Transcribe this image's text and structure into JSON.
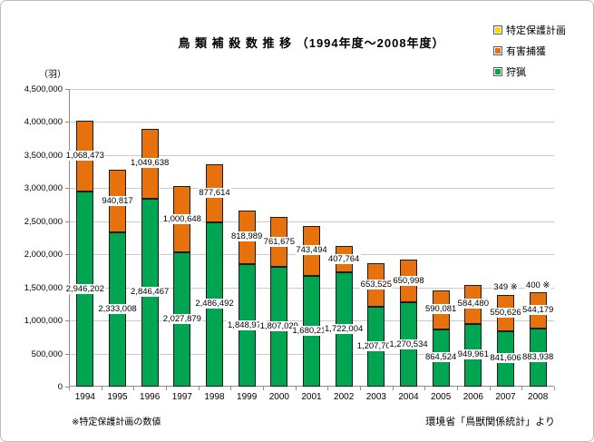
{
  "notes": {
    "left": "※特定保護計画の数値",
    "right": "環境省「鳥獣関係統計」より"
  },
  "chart_data": {
    "type": "bar",
    "stacked": true,
    "title": "鳥 類 補 殺 数 推 移 （1994年度～2008年度）",
    "unit_label": "（羽）",
    "categories": [
      "1994",
      "1995",
      "1996",
      "1997",
      "1998",
      "1999",
      "2000",
      "2001",
      "2002",
      "2003",
      "2004",
      "2005",
      "2006",
      "2007",
      "2008"
    ],
    "series": [
      {
        "name": "狩猟",
        "color": "#00a551",
        "values": [
          2946202,
          2333008,
          2846467,
          2027879,
          2486492,
          1848977,
          1807029,
          1680217,
          1722004,
          1207708,
          1270534,
          864524,
          949961,
          841606,
          883938
        ]
      },
      {
        "name": "有害捕獲",
        "color": "#e7710d",
        "values": [
          1068473,
          940817,
          1049638,
          1000648,
          877614,
          818989,
          761675,
          743494,
          407764,
          653525,
          650998,
          590081,
          584480,
          550626,
          544179
        ]
      },
      {
        "name": "特定保護計画",
        "color": "#ffd400",
        "values": [
          null,
          null,
          null,
          null,
          null,
          null,
          null,
          null,
          null,
          null,
          null,
          null,
          null,
          349,
          400
        ],
        "label_suffix": " ※",
        "label_position": "above"
      }
    ],
    "ylim": [
      0,
      4500000
    ],
    "ytick_step": 500000,
    "grid": true,
    "legend_position": "top-right",
    "legend_order_reversed": true
  }
}
